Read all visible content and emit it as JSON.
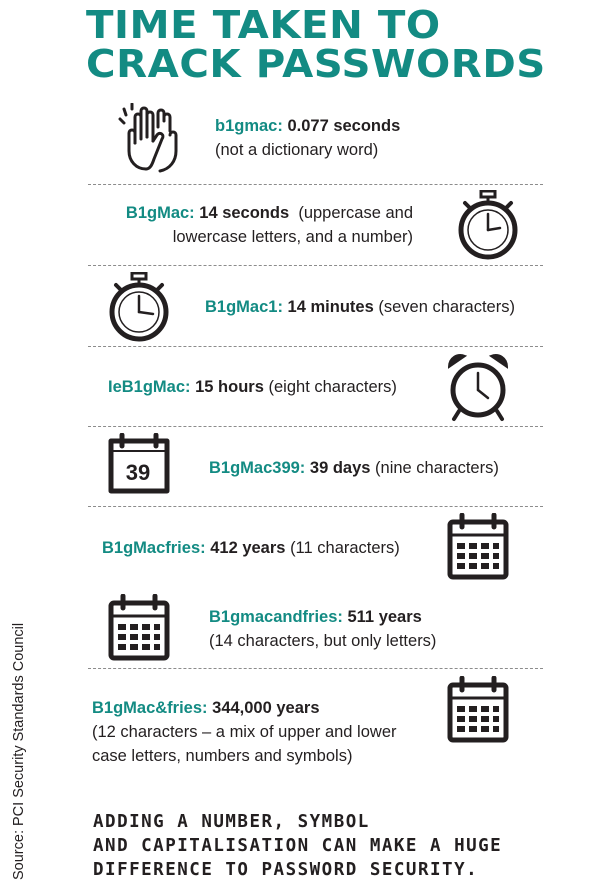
{
  "title": {
    "line1": "TIME TAKEN TO",
    "line2": "CRACK PASSWORDS"
  },
  "items": [
    {
      "password": "b1gmac:",
      "duration": "0.077 seconds",
      "line1_rest": "",
      "line2": "(not a dictionary word)",
      "icon": "clapping-hands-icon"
    },
    {
      "password": "B1gMac:",
      "duration": "14 seconds",
      "line1_rest": "(uppercase and",
      "line2": "lowercase letters, and a number)",
      "icon": "stopwatch-icon"
    },
    {
      "password": "B1gMac1:",
      "duration": "14 minutes",
      "line1_rest": "(seven characters)",
      "line2": "",
      "icon": "stopwatch-icon"
    },
    {
      "password": "IeB1gMac:",
      "duration": "15 hours",
      "line1_rest": "(eight characters)",
      "line2": "",
      "icon": "alarm-clock-icon"
    },
    {
      "password": "B1gMac399:",
      "duration": "39 days",
      "line1_rest": "(nine characters)",
      "line2": "",
      "icon": "calendar-day-icon",
      "icon_text": "39"
    },
    {
      "password": "B1gMacfries:",
      "duration": "412 years",
      "line1_rest": "(11 characters)",
      "line2": "",
      "icon": "calendar-icon"
    },
    {
      "password": "B1gmacandfries:",
      "duration": "511 years",
      "line1_rest": "",
      "line2": "(14 characters, but only letters)",
      "icon": "calendar-icon"
    },
    {
      "password": "B1gMac&fries:",
      "duration": "344,000 years",
      "line1_rest": "",
      "line2": "(12 characters – a mix of upper and lower",
      "line3": "case letters, numbers and symbols)",
      "icon": "calendar-icon"
    }
  ],
  "footer": {
    "line1": "ADDING A NUMBER, SYMBOL",
    "line2": "AND CAPITALISATION CAN MAKE A HUGE",
    "line3": "DIFFERENCE TO PASSWORD SECURITY."
  },
  "source": "Source: PCI Security Standards Council",
  "colors": {
    "accent": "#138b83",
    "text": "#231f20",
    "divider": "#8c8c8c"
  }
}
